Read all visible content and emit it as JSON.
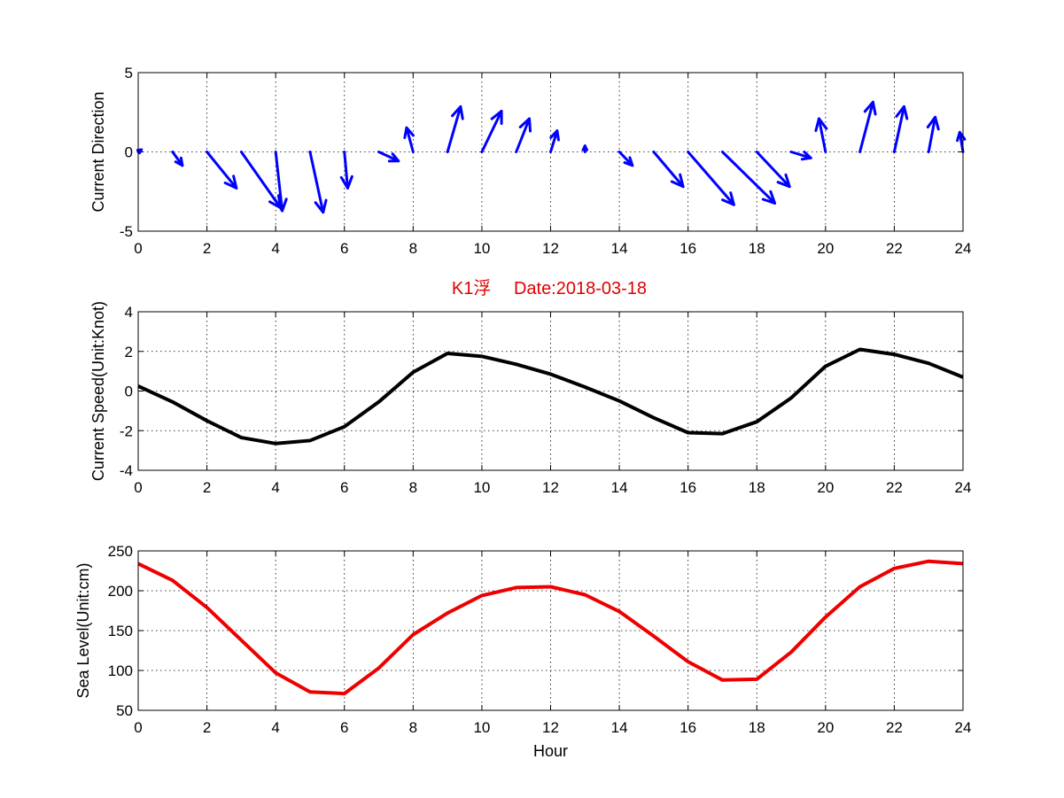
{
  "figure": {
    "title": "K1浮　 Date:2018-03-18",
    "title_color": "#e00000"
  },
  "chart_data": [
    {
      "type": "quiver",
      "ylabel": "Current Direction",
      "xlabel": "",
      "xlim": [
        0,
        24
      ],
      "ylim": [
        -5,
        5
      ],
      "xticks": [
        0,
        2,
        4,
        6,
        8,
        10,
        12,
        14,
        16,
        18,
        20,
        22,
        24
      ],
      "yticks": [
        -5,
        0,
        5
      ],
      "grid": true,
      "color": "#0000ff",
      "x": [
        0,
        1,
        2,
        3,
        4,
        5,
        6,
        7,
        8,
        9,
        10,
        11,
        12,
        13,
        14,
        15,
        16,
        17,
        18,
        19,
        20,
        21,
        22,
        23,
        24
      ],
      "u": [
        0.1,
        0.3,
        0.9,
        1.2,
        0.2,
        0.4,
        0.1,
        0.6,
        -0.2,
        0.4,
        0.6,
        0.4,
        0.2,
        0.0,
        0.4,
        0.9,
        1.4,
        1.6,
        1.0,
        0.6,
        -0.2,
        0.4,
        0.3,
        0.2,
        -0.1
      ],
      "v": [
        0.15,
        -0.9,
        -2.4,
        -3.7,
        -3.9,
        -4.0,
        -2.4,
        -0.6,
        1.6,
        3.0,
        2.7,
        2.2,
        1.4,
        0.4,
        -0.9,
        -2.3,
        -3.5,
        -3.4,
        -2.3,
        -0.4,
        2.2,
        3.3,
        3.0,
        2.3,
        1.3
      ]
    },
    {
      "type": "line",
      "ylabel": "Current Speed(Unit:Knot)",
      "xlabel": "",
      "xlim": [
        0,
        24
      ],
      "ylim": [
        -4,
        4
      ],
      "xticks": [
        0,
        2,
        4,
        6,
        8,
        10,
        12,
        14,
        16,
        18,
        20,
        22,
        24
      ],
      "yticks": [
        -4,
        -2,
        0,
        2,
        4
      ],
      "grid": true,
      "color": "#000000",
      "x": [
        0,
        1,
        2,
        3,
        4,
        5,
        6,
        7,
        8,
        9,
        10,
        11,
        12,
        13,
        14,
        15,
        16,
        17,
        18,
        19,
        20,
        21,
        22,
        23,
        24
      ],
      "y": [
        0.25,
        -0.55,
        -1.5,
        -2.35,
        -2.65,
        -2.5,
        -1.8,
        -0.55,
        0.95,
        1.9,
        1.75,
        1.35,
        0.85,
        0.2,
        -0.5,
        -1.35,
        -2.1,
        -2.15,
        -1.55,
        -0.35,
        1.25,
        2.1,
        1.85,
        1.4,
        0.7
      ]
    },
    {
      "type": "line",
      "ylabel": "Sea Level(Unit:cm)",
      "xlabel": "Hour",
      "xlim": [
        0,
        24
      ],
      "ylim": [
        50,
        250
      ],
      "xticks": [
        0,
        2,
        4,
        6,
        8,
        10,
        12,
        14,
        16,
        18,
        20,
        22,
        24
      ],
      "yticks": [
        50,
        100,
        150,
        200,
        250
      ],
      "grid": true,
      "color": "#ee0000",
      "x": [
        0,
        1,
        2,
        3,
        4,
        5,
        6,
        7,
        8,
        9,
        10,
        11,
        12,
        13,
        14,
        15,
        16,
        17,
        18,
        19,
        20,
        21,
        22,
        23,
        24
      ],
      "y": [
        234,
        213,
        179,
        138,
        97,
        73,
        71,
        103,
        145,
        172,
        194,
        204,
        205,
        195,
        174,
        143,
        111,
        88,
        89,
        123,
        167,
        205,
        228,
        237,
        234
      ]
    }
  ]
}
